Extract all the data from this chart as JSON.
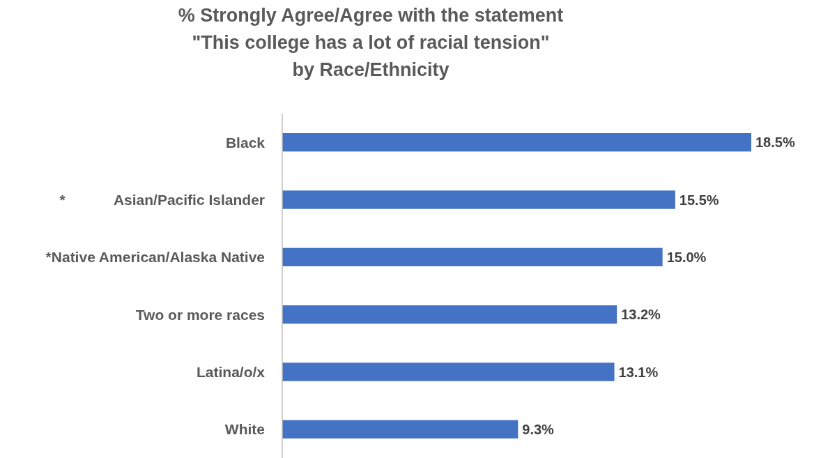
{
  "chart_data": {
    "type": "bar",
    "orientation": "horizontal",
    "title": "% Strongly Agree/Agree with the statement\n\"This college has a lot of racial tension\"\nby Race/Ethnicity",
    "categories": [
      "Black",
      "*            Asian/Pacific Islander",
      "*Native American/Alaska Native",
      "Two or more races",
      "Latina/o/x",
      "White"
    ],
    "values": [
      18.5,
      15.5,
      15.0,
      13.2,
      13.1,
      9.3
    ],
    "value_labels": [
      "18.5%",
      "15.5%",
      "15.0%",
      "13.2%",
      "13.1%",
      "9.3%"
    ],
    "color": "#4472c4"
  }
}
